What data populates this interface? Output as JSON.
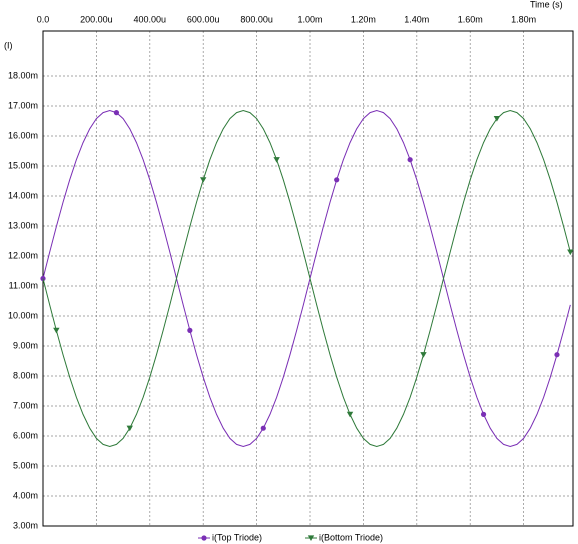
{
  "chart_data": {
    "type": "line",
    "x_label": "Time  (s)",
    "y_label": "(I)",
    "xlim": [
      0,
      0.001985
    ],
    "xticks": [
      {
        "value": 0,
        "label": "0.0"
      },
      {
        "value": 0.0002,
        "label": "200.00u"
      },
      {
        "value": 0.0004,
        "label": "400.00u"
      },
      {
        "value": 0.0006,
        "label": "600.00u"
      },
      {
        "value": 0.0008,
        "label": "800.00u"
      },
      {
        "value": 0.001,
        "label": "1.00m"
      },
      {
        "value": 0.0012,
        "label": "1.20m"
      },
      {
        "value": 0.0014,
        "label": "1.40m"
      },
      {
        "value": 0.0016,
        "label": "1.60m"
      },
      {
        "value": 0.0018,
        "label": "1.80m"
      }
    ],
    "ylim": [
      0.003,
      0.0195
    ],
    "yticks": [
      {
        "value": 0.003,
        "label": "3.00m"
      },
      {
        "value": 0.004,
        "label": "4.00m"
      },
      {
        "value": 0.005,
        "label": "5.00m"
      },
      {
        "value": 0.006,
        "label": "6.00m"
      },
      {
        "value": 0.007,
        "label": "7.00m"
      },
      {
        "value": 0.008,
        "label": "8.00m"
      },
      {
        "value": 0.009,
        "label": "9.00m"
      },
      {
        "value": 0.01,
        "label": "10.00m"
      },
      {
        "value": 0.011,
        "label": "11.00m"
      },
      {
        "value": 0.012,
        "label": "12.00m"
      },
      {
        "value": 0.013,
        "label": "13.00m"
      },
      {
        "value": 0.014,
        "label": "14.00m"
      },
      {
        "value": 0.015,
        "label": "15.00m"
      },
      {
        "value": 0.016,
        "label": "16.00m"
      },
      {
        "value": 0.017,
        "label": "17.00m"
      },
      {
        "value": 0.018,
        "label": "18.00m"
      }
    ],
    "grid": true,
    "x": [
      0,
      2.5e-05,
      5e-05,
      7.5e-05,
      0.0001,
      0.000125,
      0.00015,
      0.000175,
      0.0002,
      0.000225,
      0.00025,
      0.000275,
      0.0003,
      0.000325,
      0.00035,
      0.000375,
      0.0004,
      0.000425,
      0.00045,
      0.000475,
      0.0005,
      0.000525,
      0.00055,
      0.000575,
      0.0006,
      0.000625,
      0.00065,
      0.000675,
      0.0007,
      0.000725,
      0.00075,
      0.000775,
      0.0008,
      0.000825,
      0.00085,
      0.000875,
      0.0009,
      0.000925,
      0.00095,
      0.000975,
      0.001,
      0.001025,
      0.00105,
      0.001075,
      0.0011,
      0.001125,
      0.00115,
      0.001175,
      0.0012,
      0.001225,
      0.00125,
      0.001275,
      0.0013,
      0.001325,
      0.00135,
      0.001375,
      0.0014,
      0.001425,
      0.00145,
      0.001475,
      0.0015,
      0.001525,
      0.00155,
      0.001575,
      0.0016,
      0.001625,
      0.00165,
      0.001675,
      0.0017,
      0.001725,
      0.00175,
      0.001775,
      0.0018,
      0.001825,
      0.00185,
      0.001875,
      0.0019,
      0.001925,
      0.00195,
      0.001975
    ],
    "series": [
      {
        "name": "i(Top Triode)",
        "color": "#7a2fb5",
        "marker": "circle",
        "values": [
          0.01125,
          0.01213,
          0.01298,
          0.01379,
          0.01454,
          0.01521,
          0.01578,
          0.01624,
          0.01658,
          0.01678,
          0.01685,
          0.01678,
          0.01658,
          0.01624,
          0.01578,
          0.01521,
          0.01454,
          0.01379,
          0.01298,
          0.01213,
          0.01125,
          0.01037,
          0.00952,
          0.00871,
          0.00796,
          0.00729,
          0.00672,
          0.00626,
          0.00592,
          0.00572,
          0.00565,
          0.00572,
          0.00592,
          0.00626,
          0.00672,
          0.00729,
          0.00796,
          0.00871,
          0.00952,
          0.01037,
          0.01125,
          0.01213,
          0.01298,
          0.01379,
          0.01454,
          0.01521,
          0.01578,
          0.01624,
          0.01658,
          0.01678,
          0.01685,
          0.01678,
          0.01658,
          0.01624,
          0.01578,
          0.01521,
          0.01454,
          0.01379,
          0.01298,
          0.01213,
          0.01125,
          0.01037,
          0.00952,
          0.00871,
          0.00796,
          0.00729,
          0.00672,
          0.00626,
          0.00592,
          0.00572,
          0.00565,
          0.00572,
          0.00592,
          0.00626,
          0.00672,
          0.00729,
          0.00796,
          0.00871,
          0.00952,
          0.01037
        ]
      },
      {
        "name": "i(Bottom Triode)",
        "color": "#2f7a3a",
        "marker": "triangle",
        "values": [
          0.01125,
          0.01037,
          0.00952,
          0.00871,
          0.00796,
          0.00729,
          0.00672,
          0.00626,
          0.00592,
          0.00572,
          0.00565,
          0.00572,
          0.00592,
          0.00626,
          0.00672,
          0.00729,
          0.00796,
          0.00871,
          0.00952,
          0.01037,
          0.01125,
          0.01213,
          0.01298,
          0.01379,
          0.01454,
          0.01521,
          0.01578,
          0.01624,
          0.01658,
          0.01678,
          0.01685,
          0.01678,
          0.01658,
          0.01624,
          0.01578,
          0.01521,
          0.01454,
          0.01379,
          0.01298,
          0.01213,
          0.01125,
          0.01037,
          0.00952,
          0.00871,
          0.00796,
          0.00729,
          0.00672,
          0.00626,
          0.00592,
          0.00572,
          0.00565,
          0.00572,
          0.00592,
          0.00626,
          0.00672,
          0.00729,
          0.00796,
          0.00871,
          0.00952,
          0.01037,
          0.01125,
          0.01213,
          0.01298,
          0.01379,
          0.01454,
          0.01521,
          0.01578,
          0.01624,
          0.01658,
          0.01678,
          0.01685,
          0.01678,
          0.01658,
          0.01624,
          0.01578,
          0.01521,
          0.01454,
          0.01379,
          0.01298,
          0.01213
        ]
      }
    ]
  }
}
